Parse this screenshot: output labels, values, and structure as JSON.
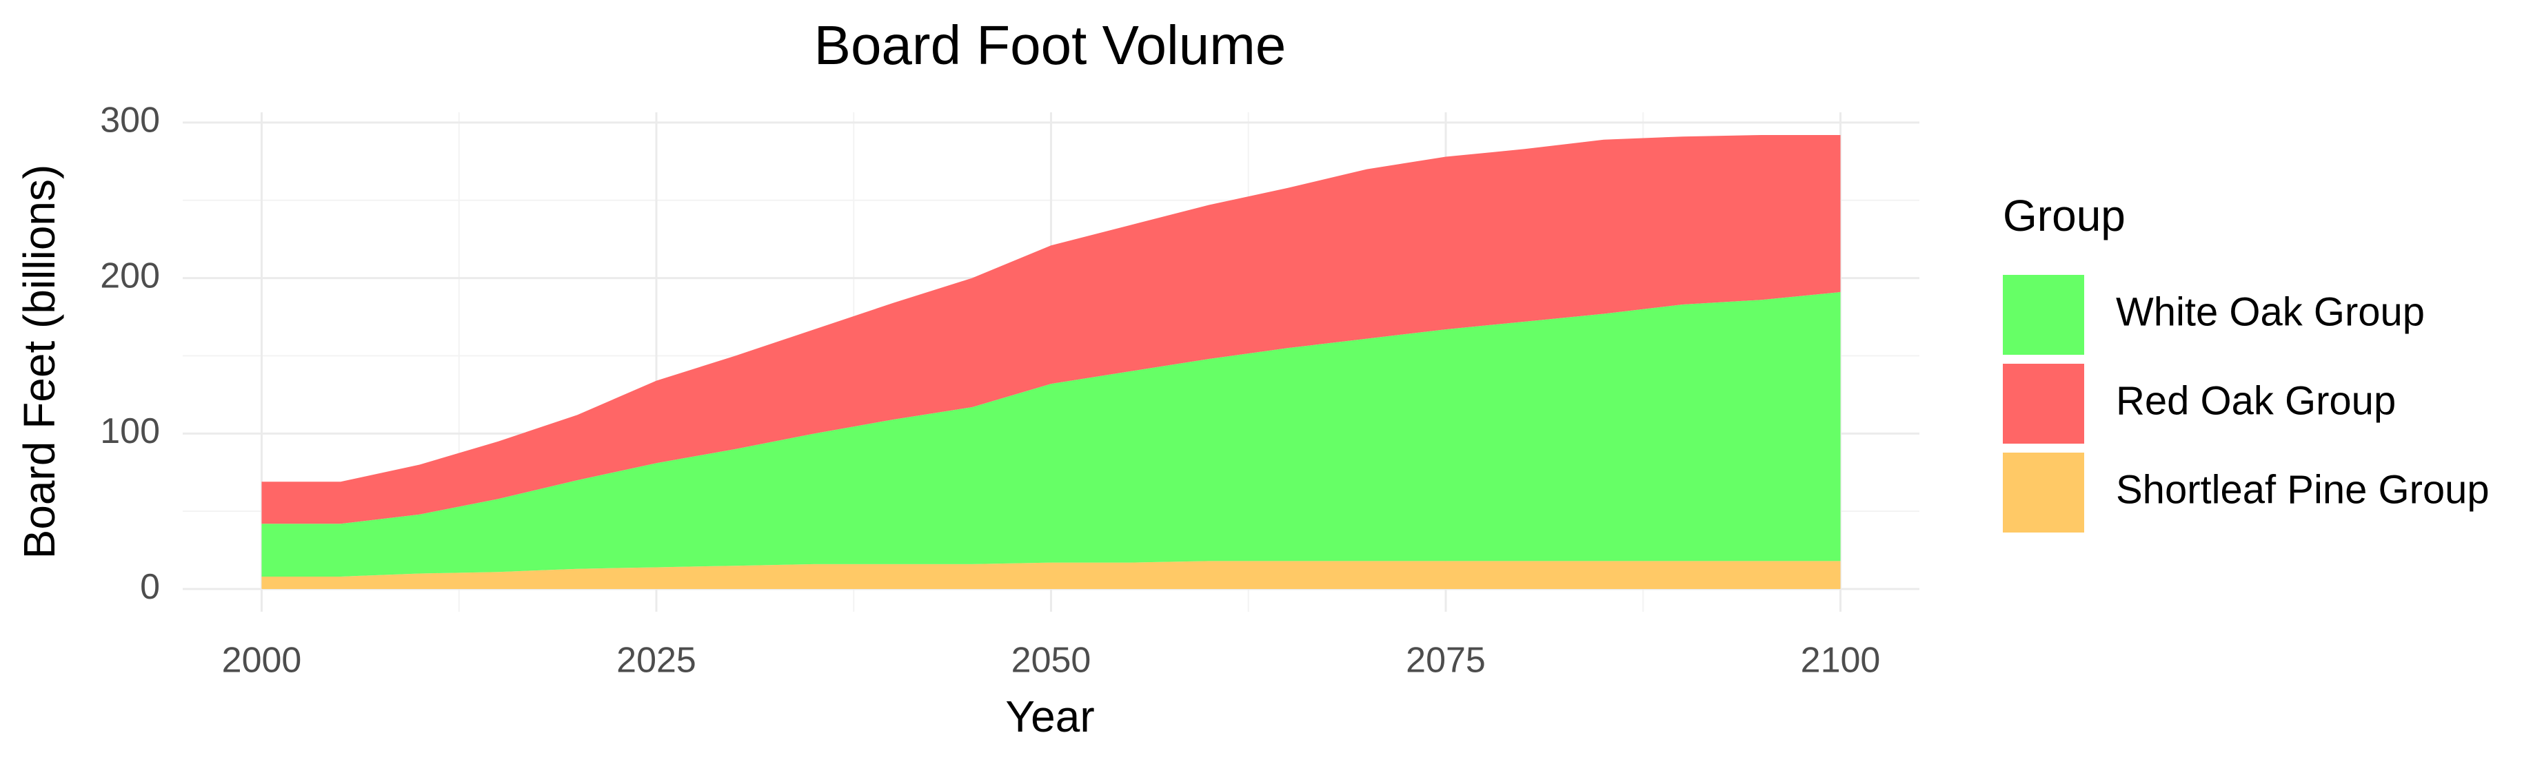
{
  "chart_data": {
    "type": "area",
    "stacked": true,
    "title": "Board Foot Volume",
    "x_label": "Year",
    "y_label": "Board Feet (billions)",
    "legend_title": "Group",
    "legend": "right",
    "x": [
      2000,
      2005,
      2010,
      2015,
      2020,
      2025,
      2030,
      2035,
      2040,
      2045,
      2050,
      2055,
      2060,
      2065,
      2070,
      2075,
      2080,
      2085,
      2090,
      2095,
      2100
    ],
    "series": [
      {
        "name": "White Oak Group",
        "color": "#66ff66",
        "values": [
          34,
          34,
          38,
          47,
          57,
          67,
          75,
          84,
          93,
          101,
          115,
          123,
          130,
          137,
          143,
          149,
          154,
          159,
          165,
          168,
          173
        ]
      },
      {
        "name": "Red Oak Group",
        "color": "#ff6666",
        "values": [
          27,
          27,
          32,
          37,
          42,
          53,
          60,
          67,
          75,
          83,
          89,
          94,
          99,
          103,
          109,
          111,
          111,
          112,
          108,
          106,
          101
        ]
      },
      {
        "name": "Shortleaf Pine Group",
        "color": "#ffc966",
        "values": [
          8,
          8,
          10,
          11,
          13,
          14,
          15,
          16,
          16,
          16,
          17,
          17,
          18,
          18,
          18,
          18,
          18,
          18,
          18,
          18,
          18
        ]
      }
    ],
    "xlim": [
      1995,
      2105
    ],
    "xticks": [
      2000,
      2025,
      2050,
      2075,
      2100
    ],
    "ylim": [
      -14.6,
      306.6
    ],
    "yticks": [
      0,
      100,
      200,
      300
    ],
    "grid": true
  }
}
